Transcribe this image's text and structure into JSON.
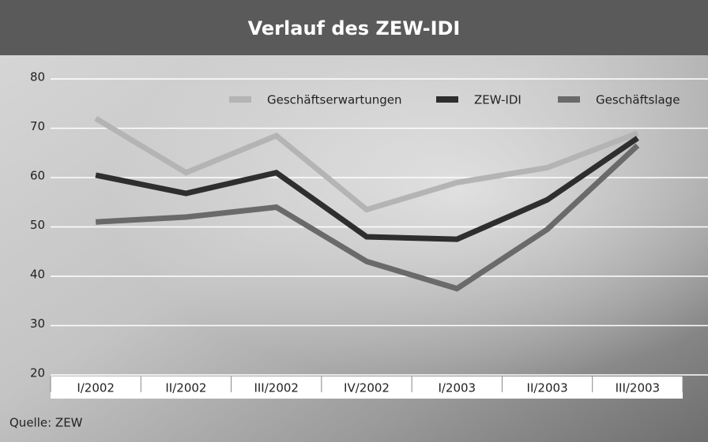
{
  "chart_data": {
    "type": "line",
    "title": "Verlauf des ZEW-IDI",
    "categories": [
      "I/2002",
      "II/2002",
      "III/2002",
      "IV/2002",
      "I/2003",
      "II/2003",
      "III/2003"
    ],
    "series": [
      {
        "name": "Geschäftserwartungen",
        "color": "#b4b4b4",
        "values": [
          72,
          61,
          68.5,
          53.5,
          59,
          62,
          69
        ]
      },
      {
        "name": "ZEW-IDI",
        "color": "#2e2e2e",
        "values": [
          60.5,
          56.8,
          61,
          48,
          47.5,
          55.5,
          68
        ]
      },
      {
        "name": "Geschäftslage",
        "color": "#6a6a6a",
        "values": [
          51,
          52,
          54,
          43,
          37.5,
          49.5,
          66.5
        ]
      }
    ],
    "ylim": [
      20,
      80
    ],
    "yticks": [
      20,
      30,
      40,
      50,
      60,
      70,
      80
    ],
    "grid": true,
    "source": "Quelle: ZEW"
  }
}
